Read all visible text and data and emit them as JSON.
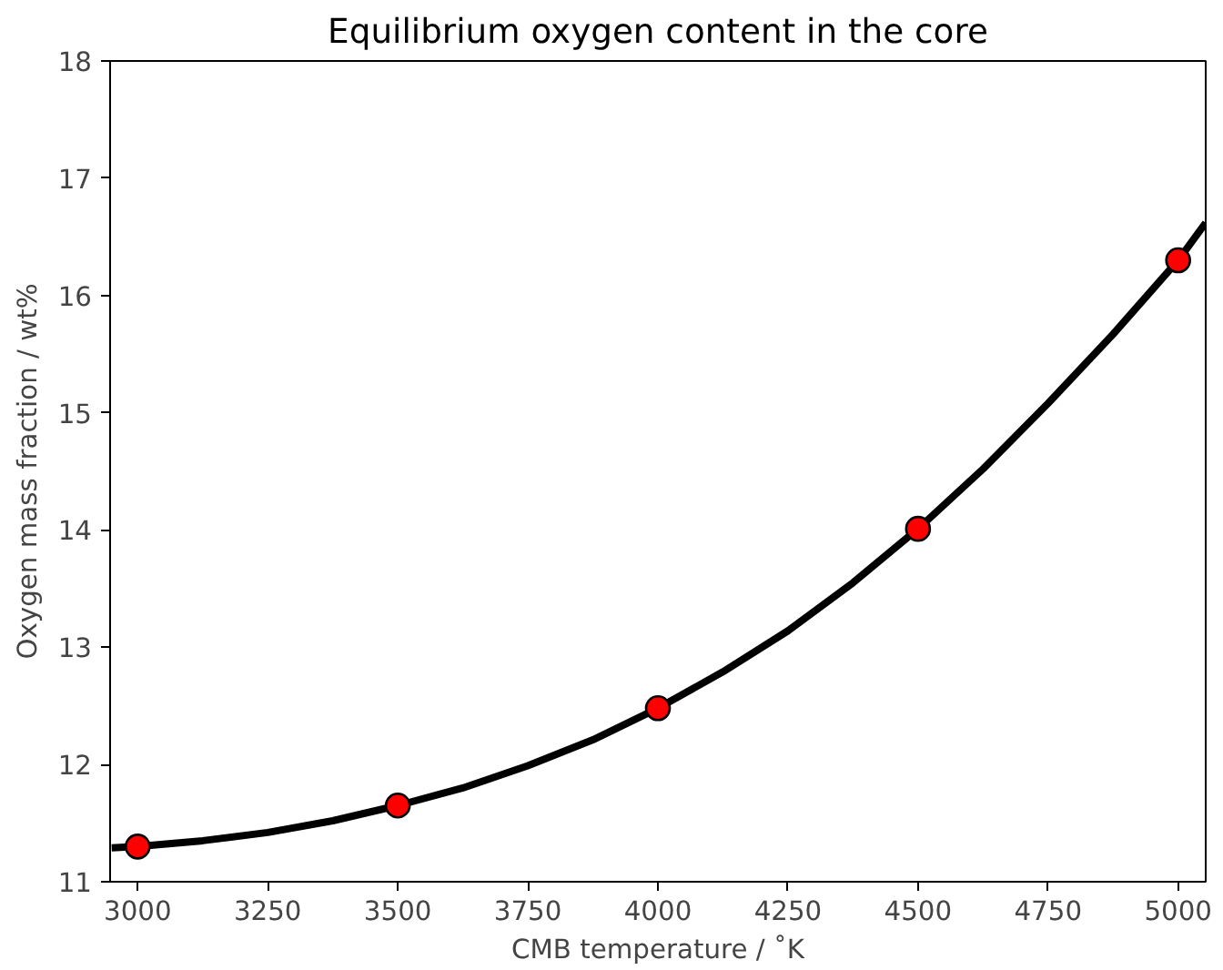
{
  "chart_data": {
    "type": "line",
    "title": "Equilibrium oxygen content in the core",
    "xlabel": "CMB temperature / ˚K",
    "ylabel": "Oxygen mass fraction / wt%",
    "xlim": [
      2947,
      5053
    ],
    "ylim": [
      11,
      18
    ],
    "xticks": [
      3000,
      3250,
      3500,
      3750,
      4000,
      4250,
      4500,
      4750,
      5000
    ],
    "yticks": [
      11,
      12,
      13,
      14,
      15,
      16,
      17,
      18
    ],
    "grid": false,
    "series": [
      {
        "color": "#000000",
        "marker": "none",
        "line_style": "solid",
        "x": [
          2950,
          3000,
          3125,
          3250,
          3375,
          3500,
          3625,
          3750,
          3875,
          4000,
          4125,
          4250,
          4375,
          4500,
          4625,
          4750,
          4875,
          5000,
          5053
        ],
        "values": [
          11.29,
          11.3,
          11.35,
          11.42,
          11.52,
          11.65,
          11.8,
          11.99,
          12.21,
          12.48,
          12.79,
          13.14,
          13.55,
          14.01,
          14.52,
          15.08,
          15.67,
          16.3,
          16.62
        ]
      },
      {
        "type": "scatter",
        "color": "#ff0000",
        "marker": "circle",
        "x": [
          3000,
          3500,
          4000,
          4500,
          5000
        ],
        "values": [
          11.3,
          11.65,
          12.48,
          14.01,
          16.3
        ]
      }
    ]
  }
}
